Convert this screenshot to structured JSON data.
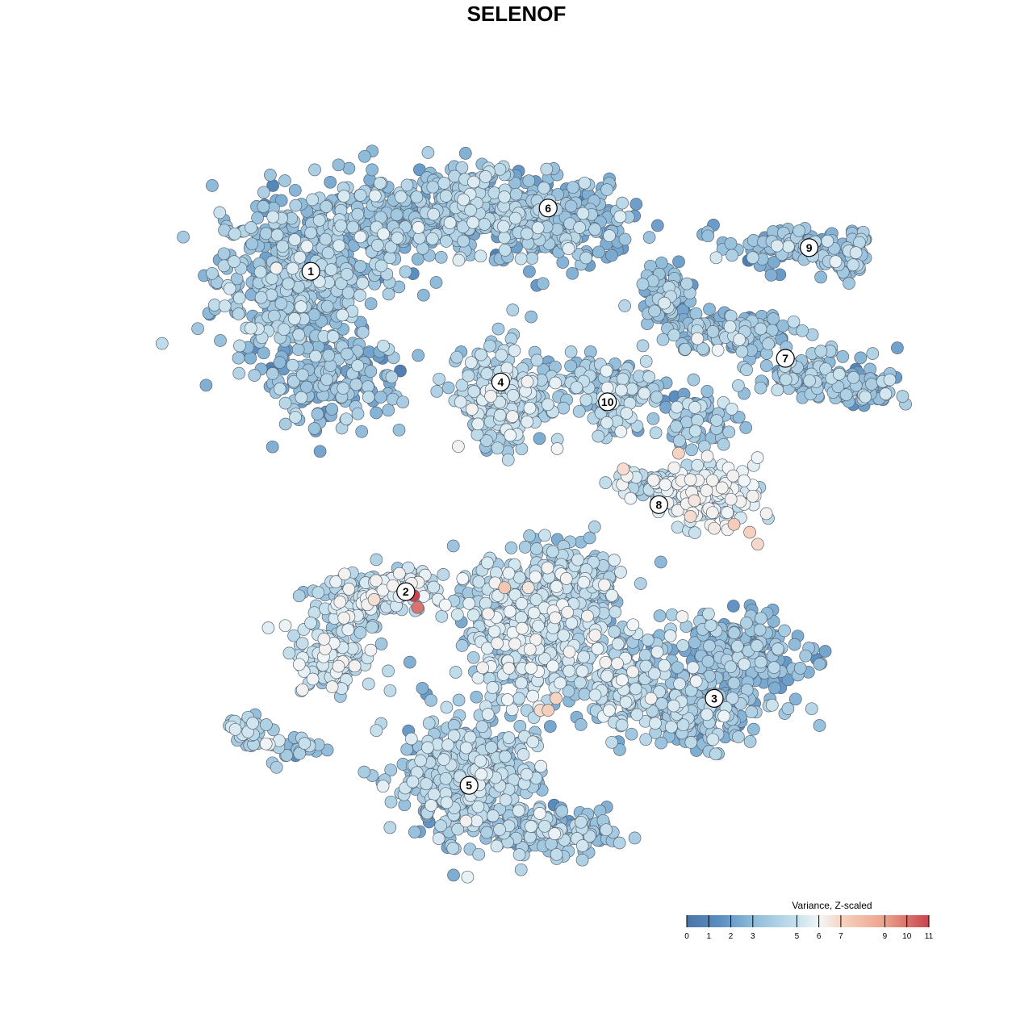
{
  "chart_data": {
    "type": "scatter",
    "title": "SELENOF",
    "xlabel": "",
    "ylabel": "",
    "grid": false,
    "legend": {
      "title": "Variance, Z-scaled",
      "placement": "bottom-right",
      "ticks": [
        0,
        1,
        2,
        3,
        5,
        6,
        7,
        9,
        10,
        11
      ],
      "range": [
        0,
        11
      ],
      "colors": [
        "#4a74a8",
        "#5b8fc2",
        "#8dbad9",
        "#c6e0ec",
        "#f2f6f8",
        "#f7d3c0",
        "#eca08a",
        "#c8434f"
      ]
    },
    "clusters": [
      {
        "label": "1",
        "x": -5.2,
        "y": 6.2,
        "mean_value": 3.4
      },
      {
        "label": "2",
        "x": -2.8,
        "y": -1.9,
        "mean_value": 4.6
      },
      {
        "label": "3",
        "x": 5.0,
        "y": -4.6,
        "mean_value": 3.0
      },
      {
        "label": "4",
        "x": -0.4,
        "y": 3.4,
        "mean_value": 4.2
      },
      {
        "label": "5",
        "x": -1.2,
        "y": -6.8,
        "mean_value": 3.8
      },
      {
        "label": "6",
        "x": 0.8,
        "y": 7.8,
        "mean_value": 3.2
      },
      {
        "label": "7",
        "x": 6.8,
        "y": 4.0,
        "mean_value": 3.4
      },
      {
        "label": "8",
        "x": 3.6,
        "y": 0.3,
        "mean_value": 5.4
      },
      {
        "label": "9",
        "x": 7.4,
        "y": 6.8,
        "mean_value": 3.2
      },
      {
        "label": "10",
        "x": 2.3,
        "y": 2.9,
        "mean_value": 3.8
      }
    ],
    "series": [
      {
        "values": [
          [
            -2.6,
            -2.0,
            11.0
          ],
          [
            -2.5,
            -2.3,
            10.0
          ],
          [
            -0.3,
            -1.8,
            7.5
          ],
          [
            0.8,
            -4.9,
            7.2
          ],
          [
            1.0,
            -4.6,
            7.0
          ],
          [
            0.6,
            -4.9,
            6.8
          ],
          [
            4.1,
            1.6,
            7.0
          ],
          [
            4.4,
            0.0,
            6.8
          ],
          [
            5.5,
            -0.2,
            7.3
          ],
          [
            5.9,
            -0.4,
            7.1
          ],
          [
            6.1,
            -0.7,
            6.9
          ],
          [
            2.7,
            1.2,
            6.8
          ],
          [
            -3.6,
            -2.1,
            6.7
          ],
          [
            0.3,
            -1.8,
            6.5
          ],
          [
            4.5,
            0.4,
            6.5
          ],
          [
            5.0,
            -0.3,
            6.4
          ]
        ]
      }
    ]
  }
}
